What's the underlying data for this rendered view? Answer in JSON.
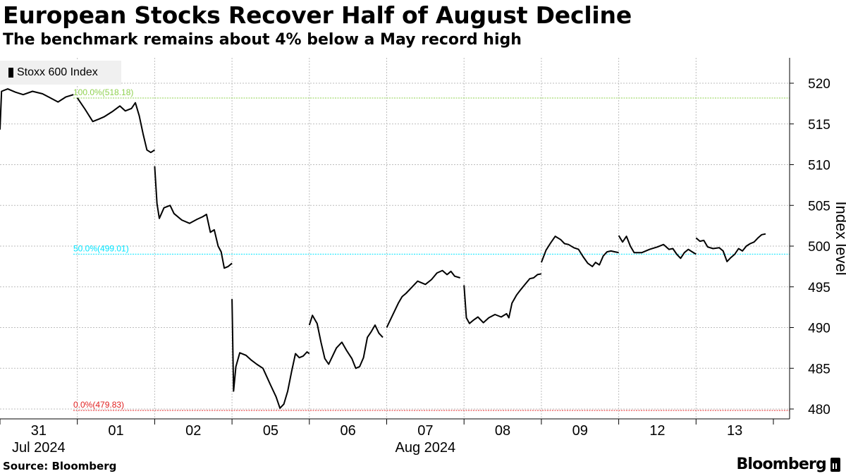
{
  "header": {
    "title": "European Stocks Recover Half of August Decline",
    "subtitle": "The benchmark remains about 4% below a May record high"
  },
  "footer": {
    "source": "Source: Bloomberg",
    "brand": "Bloomberg"
  },
  "chart_data": {
    "type": "line",
    "title": "European Stocks Recover Half of August Decline",
    "subtitle": "The benchmark remains about 4% below a May record high",
    "ylabel": "Index level",
    "ylim": [
      476.5,
      522
    ],
    "yticks": [
      480,
      485,
      490,
      495,
      500,
      505,
      510,
      515,
      520
    ],
    "grid": true,
    "legend": "top-left",
    "x_categories": [
      {
        "label": "31",
        "sub": "Jul 2024"
      },
      {
        "label": "01",
        "sub": ""
      },
      {
        "label": "02",
        "sub": ""
      },
      {
        "label": "05",
        "sub": ""
      },
      {
        "label": "06",
        "sub": ""
      },
      {
        "label": "07",
        "sub": "Aug 2024"
      },
      {
        "label": "08",
        "sub": ""
      },
      {
        "label": "09",
        "sub": ""
      },
      {
        "label": "12",
        "sub": ""
      },
      {
        "label": "13",
        "sub": ""
      }
    ],
    "reference_lines": [
      {
        "label": "100.0%(518.18)",
        "value": 518.18,
        "color": "#8fd14f"
      },
      {
        "label": "50.0%(499.01)",
        "value": 499.01,
        "color": "#00e5ff"
      },
      {
        "label": "0.0%(479.83)",
        "value": 479.83,
        "color": "#e02020"
      }
    ],
    "series": [
      {
        "name": "Stoxx 600 Index",
        "color": "#000000",
        "days": [
          [
            [
              0,
              514.3
            ],
            [
              0.02,
              519.0
            ],
            [
              0.1,
              519.3
            ],
            [
              0.2,
              518.9
            ],
            [
              0.3,
              518.6
            ],
            [
              0.42,
              519.0
            ],
            [
              0.55,
              518.7
            ],
            [
              0.65,
              518.2
            ],
            [
              0.75,
              517.7
            ],
            [
              0.85,
              518.3
            ],
            [
              0.95,
              518.6
            ]
          ],
          [
            [
              0,
              518.2
            ],
            [
              0.1,
              516.8
            ],
            [
              0.2,
              515.3
            ],
            [
              0.28,
              515.6
            ],
            [
              0.35,
              515.9
            ],
            [
              0.45,
              516.5
            ],
            [
              0.55,
              517.2
            ],
            [
              0.62,
              516.6
            ],
            [
              0.7,
              516.9
            ],
            [
              0.75,
              517.6
            ],
            [
              0.8,
              516.0
            ],
            [
              0.85,
              513.8
            ],
            [
              0.9,
              511.8
            ],
            [
              0.95,
              511.5
            ],
            [
              1.0,
              511.8
            ]
          ],
          [
            [
              0,
              509.8
            ],
            [
              0.03,
              505.2
            ],
            [
              0.06,
              503.4
            ],
            [
              0.12,
              504.7
            ],
            [
              0.2,
              505.0
            ],
            [
              0.25,
              504.0
            ],
            [
              0.35,
              503.2
            ],
            [
              0.45,
              502.8
            ],
            [
              0.55,
              503.3
            ],
            [
              0.62,
              503.6
            ],
            [
              0.67,
              503.9
            ],
            [
              0.72,
              501.7
            ],
            [
              0.77,
              502.0
            ],
            [
              0.82,
              500.0
            ],
            [
              0.86,
              499.3
            ],
            [
              0.9,
              497.3
            ],
            [
              0.95,
              497.5
            ],
            [
              1.0,
              497.9
            ]
          ],
          [
            [
              0,
              493.5
            ],
            [
              0.02,
              482.2
            ],
            [
              0.05,
              485.2
            ],
            [
              0.1,
              486.9
            ],
            [
              0.18,
              486.6
            ],
            [
              0.25,
              486.0
            ],
            [
              0.32,
              485.5
            ],
            [
              0.4,
              485.0
            ],
            [
              0.5,
              482.9
            ],
            [
              0.57,
              481.5
            ],
            [
              0.62,
              480.1
            ],
            [
              0.67,
              480.6
            ],
            [
              0.72,
              482.2
            ],
            [
              0.77,
              484.6
            ],
            [
              0.82,
              486.8
            ],
            [
              0.87,
              486.3
            ],
            [
              0.92,
              486.5
            ],
            [
              0.97,
              487.0
            ],
            [
              1.0,
              486.8
            ]
          ],
          [
            [
              0,
              490.3
            ],
            [
              0.04,
              491.5
            ],
            [
              0.1,
              490.5
            ],
            [
              0.15,
              488.2
            ],
            [
              0.2,
              486.2
            ],
            [
              0.25,
              485.5
            ],
            [
              0.3,
              486.5
            ],
            [
              0.35,
              487.5
            ],
            [
              0.42,
              488.2
            ],
            [
              0.48,
              487.2
            ],
            [
              0.55,
              486.2
            ],
            [
              0.6,
              485.0
            ],
            [
              0.65,
              485.2
            ],
            [
              0.7,
              486.3
            ],
            [
              0.75,
              488.8
            ],
            [
              0.8,
              489.5
            ],
            [
              0.85,
              490.3
            ],
            [
              0.9,
              489.3
            ],
            [
              0.95,
              488.8
            ]
          ],
          [
            [
              0,
              490.0
            ],
            [
              0.05,
              491.0
            ],
            [
              0.1,
              492.0
            ],
            [
              0.15,
              493.0
            ],
            [
              0.2,
              493.8
            ],
            [
              0.25,
              494.2
            ],
            [
              0.32,
              494.9
            ],
            [
              0.4,
              495.7
            ],
            [
              0.5,
              495.3
            ],
            [
              0.58,
              495.9
            ],
            [
              0.65,
              496.7
            ],
            [
              0.72,
              497.0
            ],
            [
              0.78,
              496.5
            ],
            [
              0.83,
              496.9
            ],
            [
              0.88,
              496.3
            ],
            [
              0.95,
              496.1
            ]
          ],
          [
            [
              0,
              495.2
            ],
            [
              0.03,
              491.2
            ],
            [
              0.07,
              490.5
            ],
            [
              0.12,
              490.9
            ],
            [
              0.18,
              491.3
            ],
            [
              0.25,
              490.6
            ],
            [
              0.32,
              491.2
            ],
            [
              0.4,
              491.6
            ],
            [
              0.48,
              491.3
            ],
            [
              0.55,
              491.7
            ],
            [
              0.58,
              491.2
            ],
            [
              0.62,
              493.0
            ],
            [
              0.68,
              494.0
            ],
            [
              0.72,
              494.5
            ],
            [
              0.78,
              495.2
            ],
            [
              0.85,
              496.0
            ],
            [
              0.9,
              496.1
            ],
            [
              0.95,
              496.5
            ],
            [
              1.0,
              496.6
            ]
          ],
          [
            [
              0,
              498.0
            ],
            [
              0.06,
              499.5
            ],
            [
              0.12,
              500.4
            ],
            [
              0.18,
              501.2
            ],
            [
              0.25,
              500.8
            ],
            [
              0.3,
              500.3
            ],
            [
              0.35,
              500.2
            ],
            [
              0.42,
              499.8
            ],
            [
              0.48,
              499.6
            ],
            [
              0.54,
              498.7
            ],
            [
              0.6,
              497.9
            ],
            [
              0.66,
              497.5
            ],
            [
              0.7,
              498.0
            ],
            [
              0.75,
              497.7
            ],
            [
              0.8,
              498.8
            ],
            [
              0.85,
              499.3
            ],
            [
              0.9,
              499.4
            ],
            [
              0.95,
              499.3
            ],
            [
              1.0,
              499.2
            ]
          ],
          [
            [
              0,
              501.3
            ],
            [
              0.05,
              500.5
            ],
            [
              0.1,
              501.2
            ],
            [
              0.15,
              500.0
            ],
            [
              0.2,
              499.2
            ],
            [
              0.3,
              499.2
            ],
            [
              0.4,
              499.6
            ],
            [
              0.5,
              499.9
            ],
            [
              0.58,
              500.2
            ],
            [
              0.65,
              499.6
            ],
            [
              0.7,
              499.7
            ],
            [
              0.75,
              499.0
            ],
            [
              0.8,
              498.5
            ],
            [
              0.85,
              499.2
            ],
            [
              0.9,
              499.6
            ],
            [
              0.95,
              499.3
            ],
            [
              1.0,
              499.0
            ]
          ],
          [
            [
              0,
              501.0
            ],
            [
              0.05,
              500.6
            ],
            [
              0.1,
              500.7
            ],
            [
              0.15,
              499.9
            ],
            [
              0.22,
              499.7
            ],
            [
              0.3,
              499.8
            ],
            [
              0.35,
              499.4
            ],
            [
              0.4,
              498.1
            ],
            [
              0.45,
              498.6
            ],
            [
              0.5,
              499.0
            ],
            [
              0.55,
              499.7
            ],
            [
              0.6,
              499.4
            ],
            [
              0.65,
              500.0
            ],
            [
              0.7,
              500.3
            ],
            [
              0.75,
              500.5
            ],
            [
              0.8,
              501.0
            ],
            [
              0.85,
              501.4
            ],
            [
              0.9,
              501.5
            ]
          ]
        ]
      }
    ]
  }
}
